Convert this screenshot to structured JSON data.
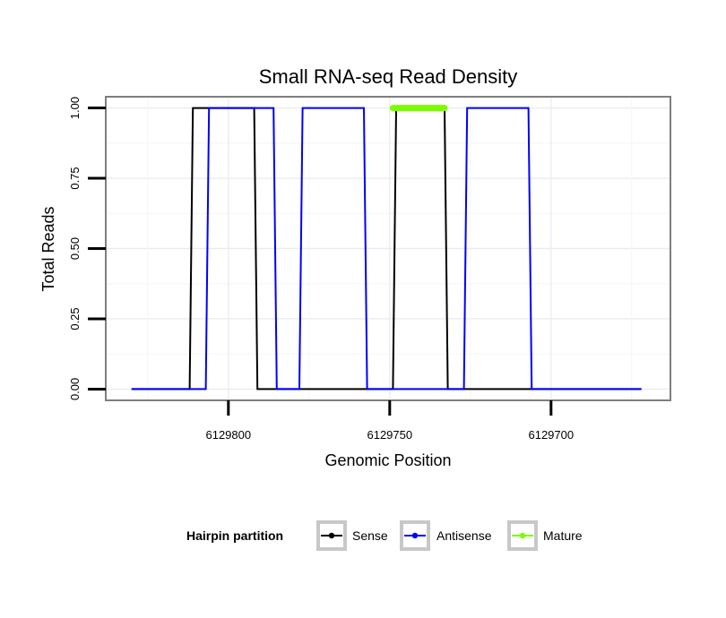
{
  "chart_data": {
    "type": "line",
    "title": "Small RNA-seq Read Density",
    "xlabel": "Genomic Position",
    "ylabel": "Total Reads",
    "x_reversed": true,
    "xlim": [
      6129838,
      6129663
    ],
    "ylim": [
      -0.04,
      1.04
    ],
    "x_ticks": [
      6129800,
      6129750,
      6129700
    ],
    "x_tick_labels": [
      "6129800",
      "6129750",
      "6129700"
    ],
    "y_ticks": [
      0,
      0.25,
      0.5,
      0.75,
      1.0
    ],
    "y_tick_labels": [
      "0.00",
      "0.25",
      "0.50",
      "0.75",
      "1.00"
    ],
    "grid": true,
    "legend": {
      "title": "Hairpin partition",
      "position": "bottom",
      "entries": [
        {
          "name": "Sense",
          "color": "#000000"
        },
        {
          "name": "Antisense",
          "color": "#0000ff"
        },
        {
          "name": "Mature",
          "color": "#7cfc00"
        }
      ]
    },
    "series": [
      {
        "name": "Sense",
        "color": "#000000",
        "x": [
          6129830,
          6129812,
          6129811,
          6129792,
          6129791,
          6129749,
          6129748,
          6129733,
          6129732,
          6129672
        ],
        "y": [
          0,
          0,
          1,
          1,
          0,
          0,
          1,
          1,
          0,
          0
        ]
      },
      {
        "name": "Antisense",
        "color": "#0000ff",
        "x": [
          6129830,
          6129807,
          6129806,
          6129786,
          6129785,
          6129778,
          6129777,
          6129758,
          6129757,
          6129727,
          6129726,
          6129707,
          6129706,
          6129672
        ],
        "y": [
          0,
          0,
          1,
          1,
          0,
          0,
          1,
          1,
          0,
          0,
          1,
          1,
          0,
          0
        ]
      },
      {
        "name": "Mature",
        "color": "#7cfc00",
        "x": [
          6129749,
          6129733
        ],
        "y": [
          1,
          1
        ]
      }
    ]
  }
}
